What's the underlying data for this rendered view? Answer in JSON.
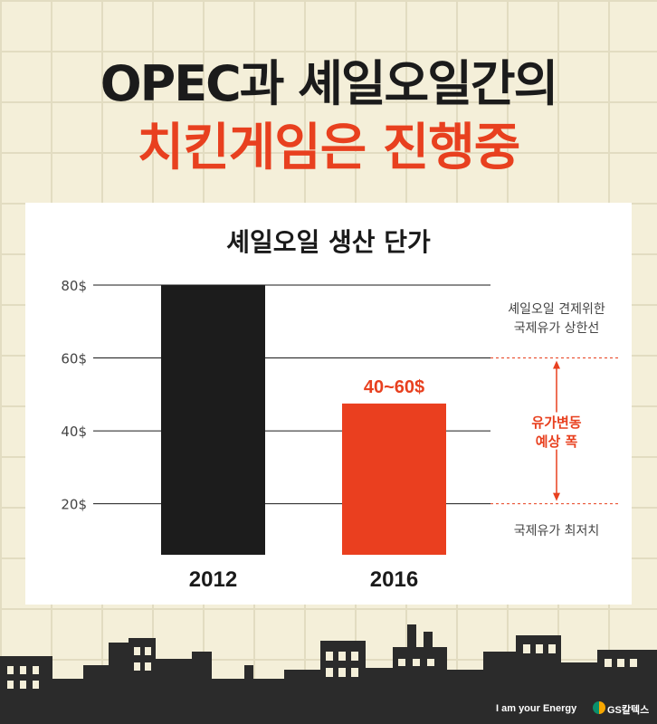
{
  "title_line1": "OPEC과 셰일오일간의",
  "title_line2": "치킨게임은 진행중",
  "chart_data": {
    "type": "bar",
    "title": "셰일오일 생산 단가",
    "categories": [
      "2012",
      "2016"
    ],
    "values": [
      80,
      47.5
    ],
    "value_labels": [
      "",
      "40~60$"
    ],
    "bar_colors": [
      "#1c1c1c",
      "#ea3f1f"
    ],
    "yticks": [
      80,
      60,
      40,
      20
    ],
    "ytick_labels": [
      "80$",
      "60$",
      "40$",
      "20$"
    ],
    "ylim": [
      6,
      80
    ],
    "reference_lines": [
      {
        "value": 60,
        "style": "dotted",
        "color": "#e8401f"
      },
      {
        "value": 20,
        "style": "dotted",
        "color": "#e8401f"
      }
    ],
    "annotations": {
      "upper_cap": "셰일오일 견제위한\n국제유가 상한선",
      "range_label": "유가변동\n예상 폭",
      "lower_floor": "국제유가 최저치"
    }
  },
  "footer": {
    "slogan": "I am your Energy",
    "brand": "GS칼텍스"
  }
}
